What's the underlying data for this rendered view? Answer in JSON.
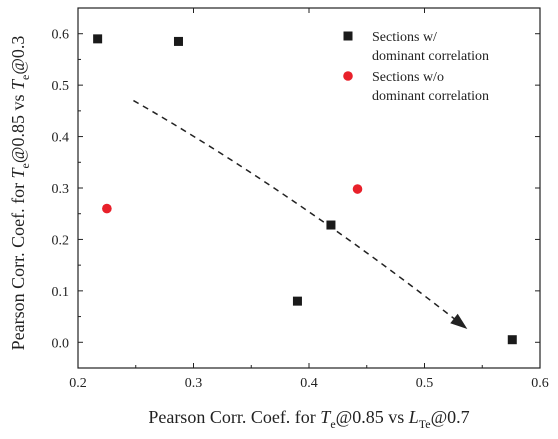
{
  "chart_data": {
    "type": "scatter",
    "title": "",
    "xlim": [
      0.2,
      0.6
    ],
    "ylim": [
      -0.05,
      0.65
    ],
    "xticks": [
      "0.2",
      "0.3",
      "0.4",
      "0.5",
      "0.6"
    ],
    "yticks": [
      "0.0",
      "0.1",
      "0.2",
      "0.3",
      "0.4",
      "0.5",
      "0.6"
    ],
    "xlabel": {
      "prefix": "Pearson Corr. Coef. for ",
      "var1": "T",
      "sub1": "e",
      "mid": "@0.85 vs ",
      "var2": "L",
      "sub2": "Te",
      "suffix": "@0.7"
    },
    "ylabel": {
      "prefix": "Pearson Corr. Coef. for ",
      "var1": "T",
      "sub1": "e",
      "mid": "@0.85 vs ",
      "var2": "T",
      "sub2": "e",
      "suffix": "@0.3"
    },
    "legend_position": "top-right",
    "grid": false,
    "series": [
      {
        "name_lines": [
          "Sections w/",
          "dominant correlation"
        ],
        "marker": "square",
        "color": "#1a1a1a",
        "points": [
          {
            "x": 0.217,
            "y": 0.59
          },
          {
            "x": 0.287,
            "y": 0.585
          },
          {
            "x": 0.39,
            "y": 0.08
          },
          {
            "x": 0.419,
            "y": 0.228
          },
          {
            "x": 0.576,
            "y": 0.005
          }
        ]
      },
      {
        "name_lines": [
          "Sections w/o",
          "dominant correlation"
        ],
        "marker": "circle",
        "color": "#e8202a",
        "points": [
          {
            "x": 0.225,
            "y": 0.26
          },
          {
            "x": 0.442,
            "y": 0.298
          }
        ]
      }
    ],
    "trend_arrow": {
      "style": "dashed",
      "points": [
        {
          "x": 0.248,
          "y": 0.47
        },
        {
          "x": 0.33,
          "y": 0.365
        },
        {
          "x": 0.43,
          "y": 0.215
        },
        {
          "x": 0.533,
          "y": 0.033
        }
      ]
    }
  }
}
